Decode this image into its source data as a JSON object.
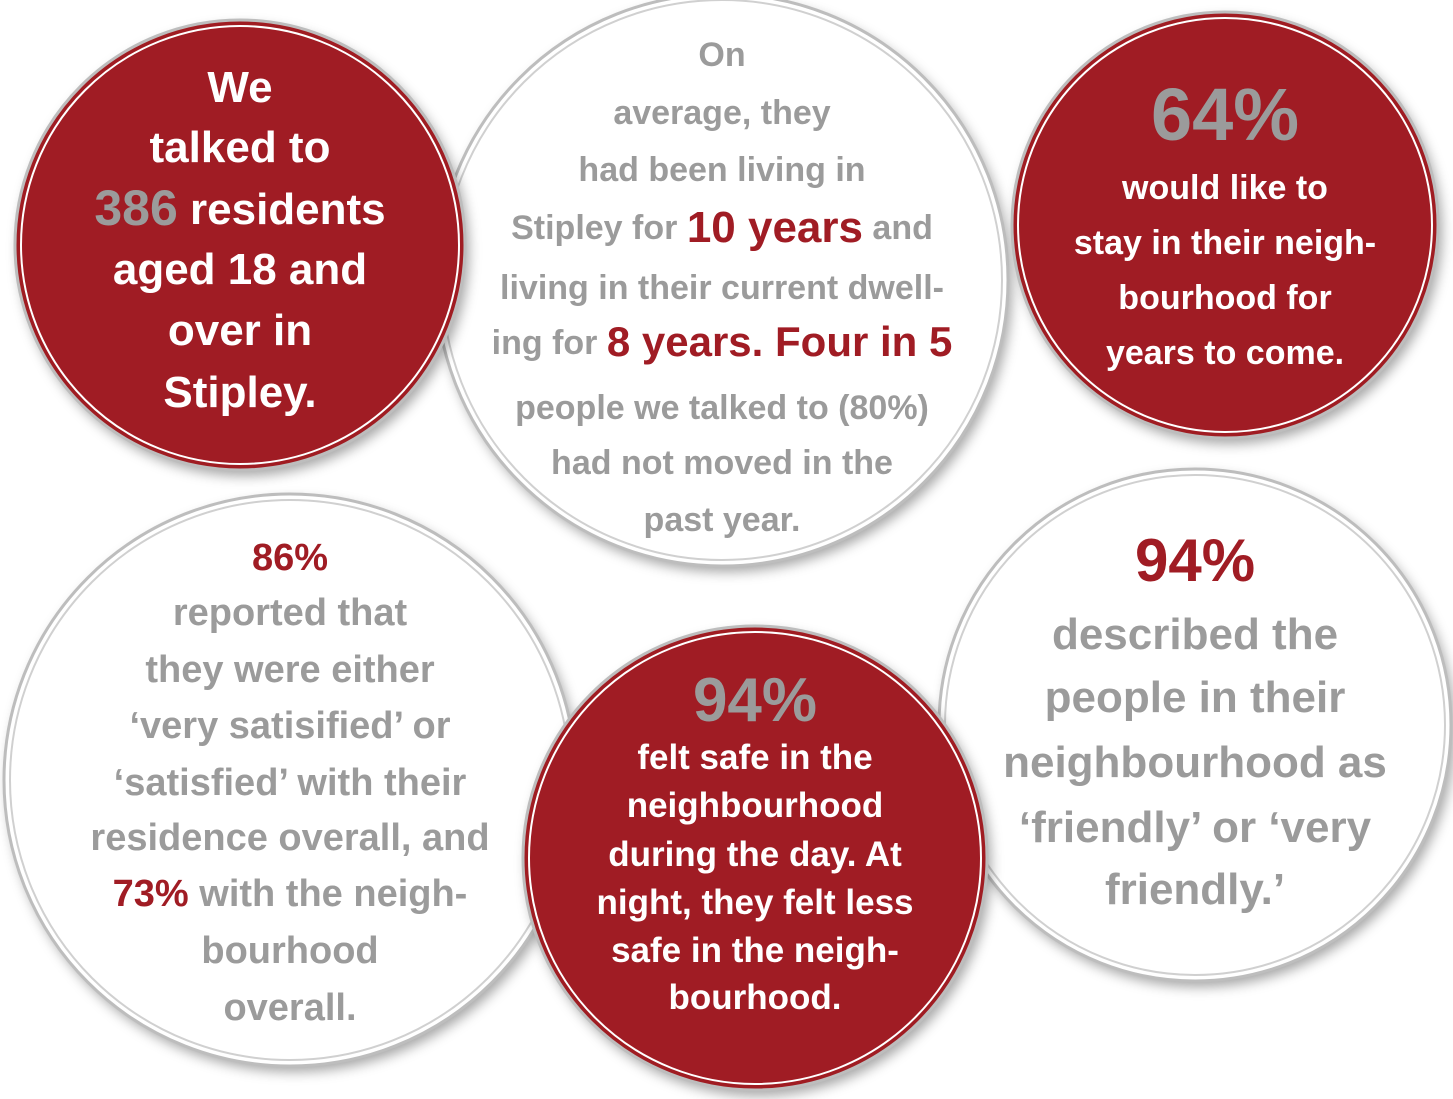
{
  "circles": [
    {
      "fill": "#a01c24",
      "text_color": "#ffffff",
      "lines": [
        [
          {
            "text": "We"
          }
        ],
        [
          {
            "text": "talked to"
          }
        ],
        [
          {
            "text": "386",
            "color": "#9b9b9b"
          },
          {
            "text": " residents"
          }
        ],
        [
          {
            "text": "aged 18 and"
          }
        ],
        [
          {
            "text": "over in"
          }
        ],
        [
          {
            "text": "Stipley."
          }
        ]
      ]
    },
    {
      "fill": "#ffffff",
      "text_color": "#9b9b9b",
      "lines": [
        [
          {
            "text": "On"
          }
        ],
        [
          {
            "text": "average, they"
          }
        ],
        [
          {
            "text": "had been living in"
          }
        ],
        [
          {
            "text": "Stipley for "
          },
          {
            "text": "10 years",
            "color": "#a01c24"
          },
          {
            "text": " and"
          }
        ],
        [
          {
            "text": "living in their current dwell-"
          }
        ],
        [
          {
            "text": "ing for "
          },
          {
            "text": "8 years. Four in 5",
            "color": "#a01c24"
          }
        ],
        [
          {
            "text": "people we talked to (80%)"
          }
        ],
        [
          {
            "text": "had not moved in the"
          }
        ],
        [
          {
            "text": "past year."
          }
        ]
      ]
    },
    {
      "fill": "#a01c24",
      "text_color": "#ffffff",
      "lines": [
        [
          {
            "text": "64%",
            "color": "#9b9b9b"
          }
        ],
        [
          {
            "text": "would like to"
          }
        ],
        [
          {
            "text": "stay in their neigh-"
          }
        ],
        [
          {
            "text": "bourhood for"
          }
        ],
        [
          {
            "text": "years to come."
          }
        ]
      ]
    },
    {
      "fill": "#ffffff",
      "text_color": "#9b9b9b",
      "lines": [
        [
          {
            "text": "86%",
            "color": "#a01c24"
          }
        ],
        [
          {
            "text": "reported that"
          }
        ],
        [
          {
            "text": "they were either"
          }
        ],
        [
          {
            "text": "‘very satisified’ or"
          }
        ],
        [
          {
            "text": "‘satisfied’ with their"
          }
        ],
        [
          {
            "text": "residence overall, and"
          }
        ],
        [
          {
            "text": "73%",
            "color": "#a01c24"
          },
          {
            "text": " with the neigh-"
          }
        ],
        [
          {
            "text": "bourhood"
          }
        ],
        [
          {
            "text": "overall."
          }
        ]
      ]
    },
    {
      "fill": "#ffffff",
      "text_color": "#9b9b9b",
      "lines": [
        [
          {
            "text": "94%",
            "color": "#a01c24"
          }
        ],
        [
          {
            "text": "described the"
          }
        ],
        [
          {
            "text": "people in their"
          }
        ],
        [
          {
            "text": "neighbourhood as"
          }
        ],
        [
          {
            "text": "‘friendly’ or ‘very"
          }
        ],
        [
          {
            "text": "friendly.’"
          }
        ]
      ]
    },
    {
      "fill": "#a01c24",
      "text_color": "#ffffff",
      "lines": [
        [
          {
            "text": "94%",
            "color": "#9b9b9b"
          }
        ],
        [
          {
            "text": "felt safe in the"
          }
        ],
        [
          {
            "text": "neighbourhood"
          }
        ],
        [
          {
            "text": "during the day. At"
          }
        ],
        [
          {
            "text": "night, they felt less"
          }
        ],
        [
          {
            "text": "safe in the neigh-"
          }
        ],
        [
          {
            "text": "bourhood."
          }
        ]
      ]
    }
  ]
}
